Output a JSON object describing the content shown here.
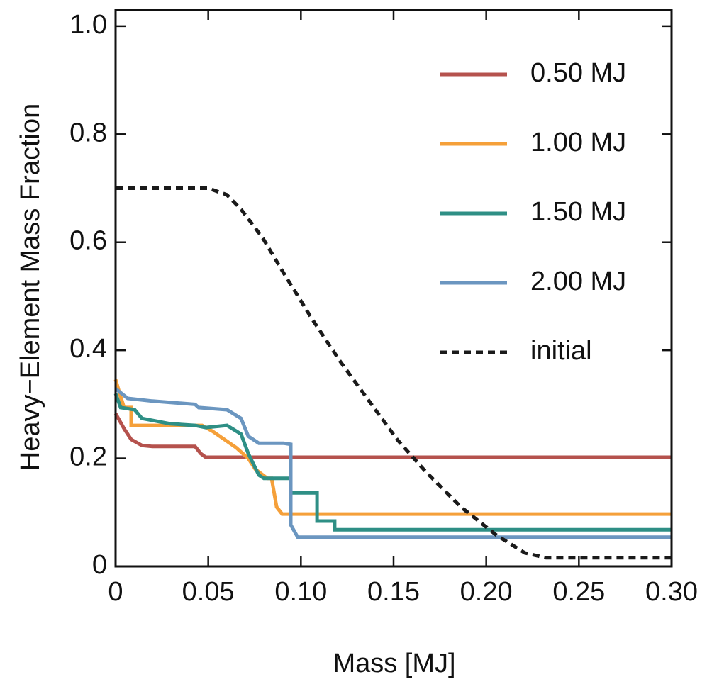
{
  "chart_data": {
    "type": "line",
    "xlabel": "Mass [MJ]",
    "ylabel": "Heavy−Element Mass Fraction",
    "xlim": [
      0,
      0.3
    ],
    "ylim": [
      0,
      1.03
    ],
    "xticks": [
      0,
      0.05,
      {
        "value": 0.1,
        "label": "0.10"
      },
      0.15,
      {
        "value": 0.2,
        "label": "0.20"
      },
      0.25,
      {
        "value": 0.3,
        "label": "0.30"
      }
    ],
    "yticks": [
      0,
      0.2,
      0.4,
      0.6,
      0.8,
      {
        "value": 1,
        "label": "1.0"
      }
    ],
    "legend": "upper right",
    "series": [
      {
        "name": "0.50 MJ",
        "color": "#b5524d",
        "dash": false,
        "x": [
          0,
          0.0046,
          0.0084,
          0.0142,
          0.0199,
          0.0429,
          0.0459,
          0.0486,
          0.3
        ],
        "values": [
          0.283,
          0.255,
          0.235,
          0.224,
          0.222,
          0.222,
          0.209,
          0.202,
          0.202
        ]
      },
      {
        "name": "1.00 MJ",
        "color": "#f5a03a",
        "dash": false,
        "x": [
          0,
          0.0027,
          0.0046,
          0.0084,
          0.0084,
          0.0467,
          0.0524,
          0.065,
          0.0716,
          0.0754,
          0.0819,
          0.0842,
          0.0869,
          0.0899,
          0.3
        ],
        "values": [
          0.346,
          0.314,
          0.294,
          0.294,
          0.261,
          0.261,
          0.25,
          0.22,
          0.2,
          0.18,
          0.163,
          0.163,
          0.11,
          0.097,
          0.097
        ]
      },
      {
        "name": "1.50 MJ",
        "color": "#2e8f85",
        "dash": false,
        "x": [
          0,
          0.0027,
          0.0103,
          0.0142,
          0.0295,
          0.0429,
          0.0486,
          0.0601,
          0.0677,
          0.0716,
          0.0773,
          0.08,
          0.0945,
          0.0945,
          0.1087,
          0.1087,
          0.1182,
          0.1182,
          0.3
        ],
        "values": [
          0.32,
          0.294,
          0.29,
          0.274,
          0.264,
          0.261,
          0.257,
          0.261,
          0.245,
          0.209,
          0.169,
          0.163,
          0.163,
          0.136,
          0.136,
          0.084,
          0.084,
          0.068,
          0.068
        ]
      },
      {
        "name": "2.00 MJ",
        "color": "#6b96c0",
        "dash": false,
        "x": [
          0,
          0.0065,
          0.0199,
          0.0429,
          0.0448,
          0.0601,
          0.0677,
          0.0716,
          0.0773,
          0.0907,
          0.0945,
          0.0945,
          0.0983,
          0.3
        ],
        "values": [
          0.329,
          0.311,
          0.306,
          0.3,
          0.294,
          0.29,
          0.274,
          0.241,
          0.228,
          0.228,
          0.226,
          0.077,
          0.054,
          0.054
        ]
      },
      {
        "name": "initial",
        "color": "#1a1a1a",
        "dash": true,
        "x": [
          0,
          0.05,
          0.06,
          0.0677,
          0.0792,
          0.0907,
          0.106,
          0.1213,
          0.1366,
          0.1519,
          0.1672,
          0.1864,
          0.2055,
          0.2208,
          0.2323,
          0.2438,
          0.3
        ],
        "values": [
          0.7,
          0.7,
          0.688,
          0.661,
          0.609,
          0.543,
          0.458,
          0.379,
          0.307,
          0.235,
          0.176,
          0.11,
          0.058,
          0.025,
          0.016,
          0.016,
          0.016
        ]
      }
    ]
  }
}
